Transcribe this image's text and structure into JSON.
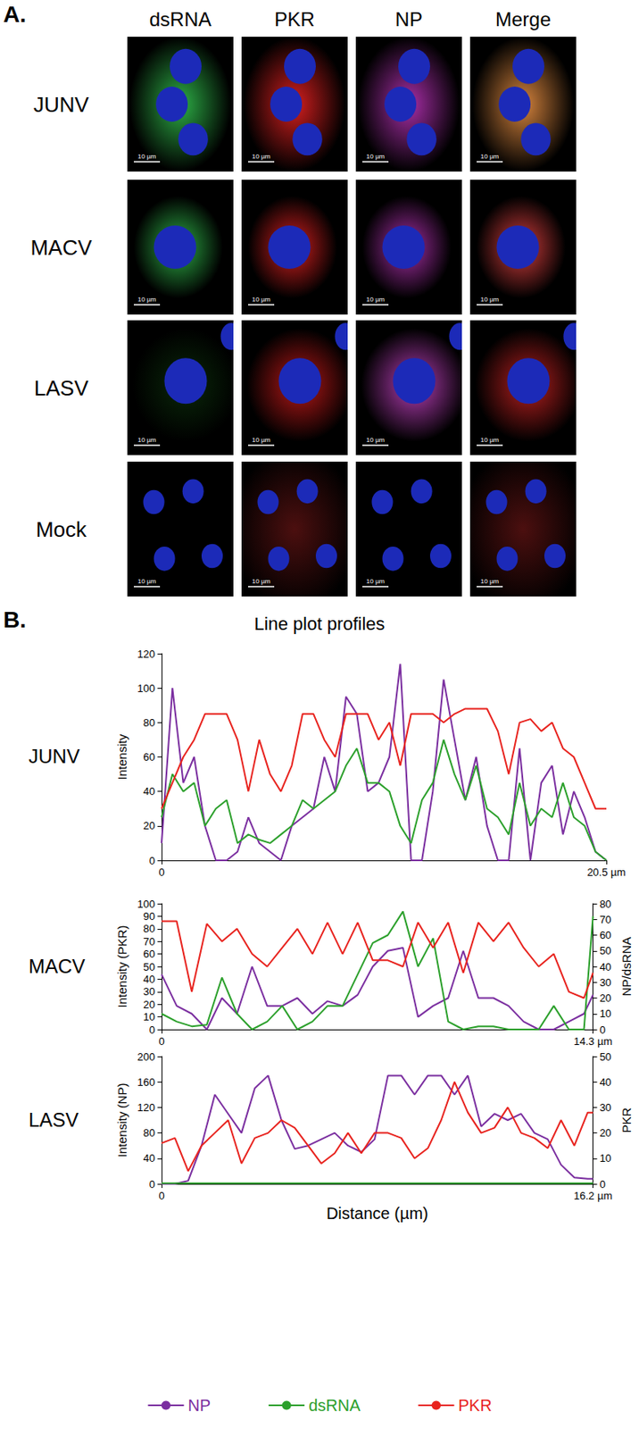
{
  "panel_a": {
    "label": "A.",
    "columns": [
      "dsRNA",
      "PKR",
      "NP",
      "Merge"
    ],
    "rows": [
      "JUNV",
      "MACV",
      "LASV",
      "Mock"
    ],
    "scale_bar": "10 µm"
  },
  "panel_b": {
    "label": "B.",
    "title": "Line plot profiles"
  },
  "chart_data": [
    {
      "type": "line",
      "title": "JUNV",
      "ylabel": "Intensity",
      "grid": false,
      "x": [
        0,
        0.5,
        1,
        1.5,
        2,
        2.5,
        3,
        3.5,
        4,
        4.5,
        5,
        5.5,
        6,
        6.5,
        7,
        7.5,
        8,
        8.5,
        9,
        9.5,
        10,
        10.5,
        11,
        11.5,
        12,
        12.5,
        13,
        13.5,
        14,
        14.5,
        15,
        15.5,
        16,
        16.5,
        17,
        17.5,
        18,
        18.5,
        19,
        19.5,
        20,
        20.5
      ],
      "xlim": [
        0,
        20.5
      ],
      "xticks": [
        0,
        {
          "value": 20.5,
          "label": "20.5 µm"
        }
      ],
      "ylim": [
        0,
        120
      ],
      "yticks": [
        0,
        20,
        40,
        60,
        80,
        100,
        120
      ],
      "series": [
        {
          "name": "NP",
          "color": "#7b2fa0",
          "values": [
            10,
            100,
            45,
            60,
            20,
            0,
            0,
            5,
            25,
            10,
            5,
            0,
            20,
            25,
            30,
            60,
            40,
            95,
            85,
            40,
            45,
            60,
            114,
            0,
            0,
            40,
            105,
            70,
            35,
            60,
            20,
            0,
            0,
            65,
            0,
            45,
            55,
            15,
            40,
            25,
            5,
            0
          ]
        },
        {
          "name": "dsRNA",
          "color": "#2ca02c",
          "values": [
            25,
            50,
            40,
            45,
            20,
            30,
            35,
            10,
            15,
            12,
            10,
            15,
            20,
            35,
            30,
            35,
            40,
            55,
            65,
            45,
            45,
            40,
            20,
            10,
            35,
            45,
            70,
            50,
            35,
            55,
            30,
            25,
            15,
            45,
            20,
            30,
            25,
            45,
            25,
            20,
            5,
            0
          ]
        },
        {
          "name": "PKR",
          "color": "#e8231e",
          "values": [
            30,
            45,
            60,
            70,
            85,
            85,
            85,
            70,
            40,
            70,
            50,
            40,
            55,
            85,
            85,
            70,
            60,
            85,
            85,
            85,
            70,
            80,
            55,
            85,
            85,
            85,
            80,
            85,
            88,
            88,
            88,
            75,
            50,
            80,
            82,
            75,
            80,
            65,
            60,
            45,
            30,
            30
          ]
        }
      ]
    },
    {
      "type": "line",
      "title": "MACV",
      "ylabel": "Intensity (PKR)",
      "y2label": "NP/dsRNA",
      "grid": false,
      "x": [
        0,
        0.5,
        1,
        1.5,
        2,
        2.5,
        3,
        3.5,
        4,
        4.5,
        5,
        5.5,
        6,
        6.5,
        7,
        7.5,
        8,
        8.5,
        9,
        9.5,
        10,
        10.5,
        11,
        11.5,
        12,
        12.5,
        13,
        13.5,
        14,
        14.3
      ],
      "xlim": [
        0,
        14.3
      ],
      "xticks": [
        0,
        {
          "value": 14.3,
          "label": "14.3 µm"
        }
      ],
      "ylim": [
        0,
        100
      ],
      "yticks": [
        0,
        10,
        20,
        30,
        40,
        50,
        60,
        70,
        80,
        90,
        100
      ],
      "y2lim": [
        0,
        80
      ],
      "y2ticks": [
        0,
        10,
        20,
        30,
        40,
        50,
        60,
        70,
        80
      ],
      "series": [
        {
          "name": "NP",
          "color": "#7b2fa0",
          "axis": "y2",
          "values": [
            35,
            15,
            10,
            0,
            20,
            10,
            40,
            15,
            15,
            20,
            10,
            18,
            15,
            22,
            40,
            50,
            52,
            8,
            15,
            20,
            50,
            20,
            20,
            15,
            5,
            0,
            0,
            5,
            10,
            22
          ]
        },
        {
          "name": "dsRNA",
          "color": "#2ca02c",
          "axis": "y2",
          "values": [
            10,
            5,
            2,
            3,
            33,
            10,
            0,
            5,
            15,
            0,
            5,
            15,
            15,
            35,
            55,
            60,
            75,
            40,
            58,
            5,
            0,
            2,
            2,
            0,
            0,
            0,
            15,
            0,
            0,
            72
          ]
        },
        {
          "name": "PKR",
          "color": "#e8231e",
          "values": [
            86,
            86,
            30,
            84,
            70,
            80,
            60,
            50,
            65,
            80,
            60,
            85,
            60,
            85,
            55,
            55,
            50,
            85,
            65,
            85,
            45,
            85,
            70,
            85,
            65,
            50,
            60,
            30,
            25,
            45
          ]
        }
      ]
    },
    {
      "type": "line",
      "title": "LASV",
      "xlabel": "Distance (µm)",
      "ylabel": "Intensity (NP)",
      "y2label": "PKR",
      "grid": false,
      "legend": "bottom",
      "x": [
        0,
        0.5,
        1,
        1.5,
        2,
        2.5,
        3,
        3.5,
        4,
        4.5,
        5,
        5.5,
        6,
        6.5,
        7,
        7.5,
        8,
        8.5,
        9,
        9.5,
        10,
        10.5,
        11,
        11.5,
        12,
        12.5,
        13,
        13.5,
        14,
        14.5,
        15,
        15.5,
        16,
        16.2
      ],
      "xlim": [
        0,
        16.2
      ],
      "xticks": [
        0,
        {
          "value": 16.2,
          "label": "16.2 µm"
        }
      ],
      "ylim": [
        0,
        200
      ],
      "yticks": [
        0,
        40,
        80,
        120,
        160,
        200
      ],
      "y2lim": [
        0,
        50
      ],
      "y2ticks": [
        0,
        10,
        20,
        30,
        40,
        50
      ],
      "series": [
        {
          "name": "NP",
          "color": "#7b2fa0",
          "values": [
            0,
            0,
            5,
            60,
            140,
            110,
            80,
            150,
            170,
            100,
            55,
            60,
            70,
            80,
            60,
            50,
            70,
            170,
            170,
            140,
            170,
            170,
            140,
            170,
            90,
            110,
            100,
            110,
            80,
            70,
            30,
            10,
            8,
            8
          ]
        },
        {
          "name": "dsRNA",
          "color": "#2ca02c",
          "values": [
            1,
            1,
            1,
            1,
            1,
            1,
            1,
            1,
            1,
            1,
            1,
            1,
            1,
            1,
            1,
            1,
            1,
            1,
            1,
            1,
            1,
            1,
            1,
            1,
            1,
            1,
            1,
            1,
            1,
            1,
            1,
            1,
            1,
            1
          ]
        },
        {
          "name": "PKR",
          "color": "#e8231e",
          "axis": "y2",
          "values": [
            16,
            18,
            5,
            15,
            20,
            25,
            8,
            18,
            20,
            25,
            22,
            15,
            8,
            12,
            20,
            12,
            20,
            20,
            18,
            10,
            14,
            25,
            40,
            28,
            20,
            22,
            30,
            20,
            18,
            14,
            25,
            15,
            28,
            28
          ]
        }
      ]
    }
  ]
}
